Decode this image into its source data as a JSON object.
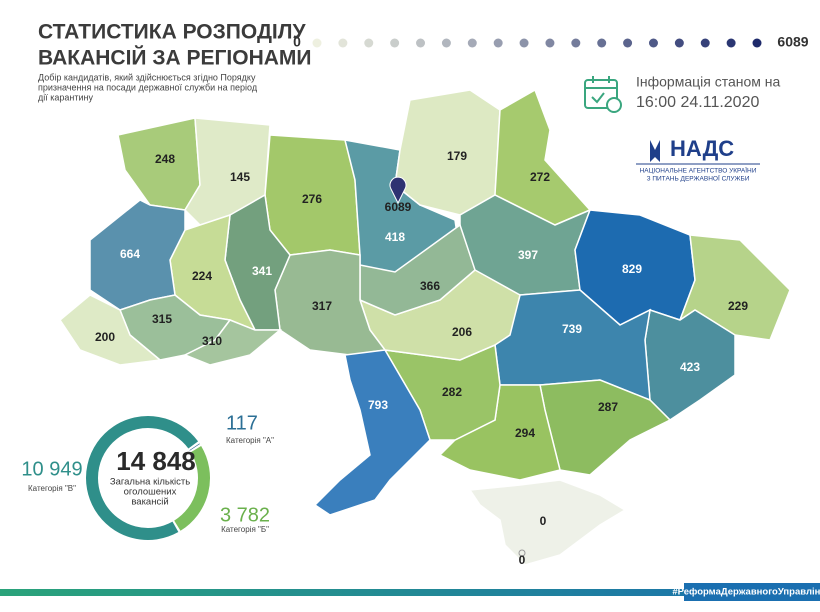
{
  "header": {
    "title": [
      "СТАТИСТИКА РОЗПОДІЛУ",
      "ВАКАНСІЙ ЗА РЕГІОНАМИ"
    ],
    "subtitle": [
      "Добір кандидатів, який здійснюється згідно Порядку",
      "призначення на посади державної служби на період",
      "дії карантину"
    ]
  },
  "legend": {
    "min": 0,
    "max": 6089
  },
  "info": {
    "label": "Інформація станом на",
    "datetime": "16:00 24.11.2020"
  },
  "logo": {
    "name": "НАДС",
    "line1": "НАЦІОНАЛЬНЕ АГЕНТСТВО УКРАЇНИ",
    "line2": "З ПИТАНЬ ДЕРЖАВНОЇ СЛУЖБИ"
  },
  "map": {
    "values": [
      248,
      145,
      276,
      418,
      179,
      272,
      397,
      829,
      229,
      423,
      739,
      287,
      294,
      282,
      206,
      366,
      317,
      341,
      224,
      664,
      315,
      200,
      310,
      793,
      0,
      0,
      6089
    ],
    "colors": [
      "#a8cb7a",
      "#dfeac8",
      "#a3c86a",
      "#5b9ba5",
      "#dde9c3",
      "#a6ca6e",
      "#6fa493",
      "#1d6bb0",
      "#b6d38a",
      "#4d8f9e",
      "#3d85ad",
      "#8dbc60",
      "#99c361",
      "#9ac467",
      "#cfe0a8",
      "#93b896",
      "#98ba93",
      "#73a07e",
      "#c6dc96",
      "#5a91ad",
      "#9bbf9a",
      "#deeac6",
      "#a5c59e",
      "#3a7fbd",
      "#eef1e8",
      "#eef1e8",
      "#2e3272"
    ]
  },
  "donut": {
    "total_label": "14 848",
    "caption": [
      "Загальна кількість",
      "оголошених",
      "вакансій"
    ],
    "segments": [
      {
        "name": "Категорія \"А\"",
        "value": 117,
        "color": "#2b5f8a"
      },
      {
        "name": "Категорія \"Б\"",
        "value": 3782,
        "label": "3 782",
        "color": "#7cbf5d"
      },
      {
        "name": "Категорія \"В\"",
        "value": 10949,
        "label": "10 949",
        "color": "#2f8f8a"
      }
    ]
  },
  "footer": "#РеформаДержавногоУправління"
}
